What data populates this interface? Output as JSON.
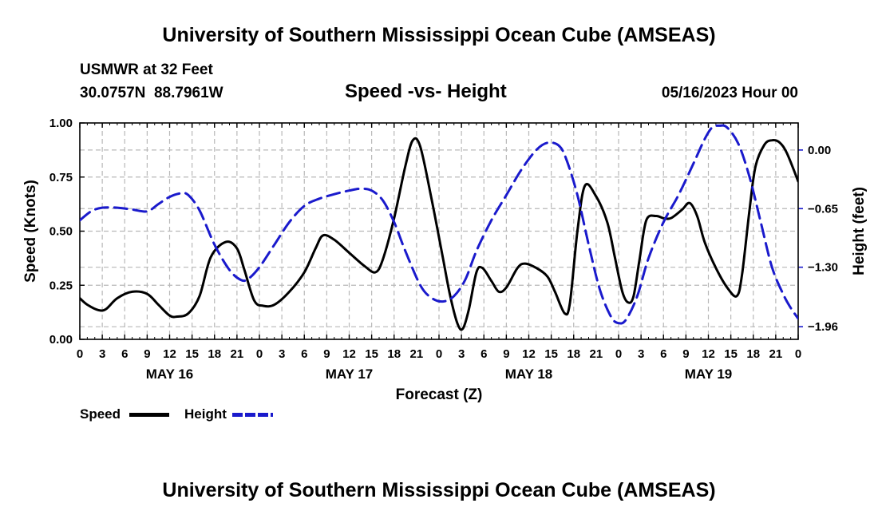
{
  "header": {
    "top_title": "University of Southern Mississippi Ocean Cube (AMSEAS)",
    "bottom_title": "University of Southern Mississippi Ocean Cube (AMSEAS)",
    "station": "USMWR at 32 Feet",
    "coords": "30.0757N  88.7961W",
    "date": "05/16/2023 Hour 00"
  },
  "chart_data": {
    "type": "line",
    "title": "Speed -vs- Height",
    "xlabel": "Forecast (Z)",
    "ylabel_left": "Speed (Knots)",
    "ylabel_right": "Height (feet)",
    "x_range_hours": [
      0,
      96
    ],
    "ylim_left": [
      0,
      1
    ],
    "ylim_right": [
      -2.1,
      0.3
    ],
    "x_tick_labels": [
      "0",
      "3",
      "6",
      "9",
      "12",
      "15",
      "18",
      "21",
      "0",
      "3",
      "6",
      "9",
      "12",
      "15",
      "18",
      "21",
      "0",
      "3",
      "6",
      "9",
      "12",
      "15",
      "18",
      "21",
      "0",
      "3",
      "6",
      "9",
      "12",
      "15",
      "18",
      "21",
      "0"
    ],
    "day_labels": [
      {
        "label": "MAY 16",
        "hour": 12
      },
      {
        "label": "MAY 17",
        "hour": 36
      },
      {
        "label": "MAY 18",
        "hour": 60
      },
      {
        "label": "MAY 19",
        "hour": 84
      }
    ],
    "left_ticks": [
      {
        "value": 0.0,
        "label": "0.00"
      },
      {
        "value": 0.25,
        "label": "0.25"
      },
      {
        "value": 0.5,
        "label": "0.50"
      },
      {
        "value": 0.75,
        "label": "0.75"
      },
      {
        "value": 1.0,
        "label": "1.00"
      }
    ],
    "right_ticks": [
      {
        "value": 0.0,
        "label": "0.00"
      },
      {
        "value": -0.65,
        "label": "−0.65"
      },
      {
        "value": -1.3,
        "label": "−1.30"
      },
      {
        "value": -1.96,
        "label": "−1.96"
      }
    ],
    "grid": true,
    "legend": [
      {
        "label": "Speed",
        "color": "#000000",
        "style": "solid"
      },
      {
        "label": "Height",
        "color": "#1a1acc",
        "style": "dashed"
      }
    ],
    "series": [
      {
        "name": "Speed",
        "axis": "left",
        "color": "#000000",
        "points": [
          [
            0,
            0.19
          ],
          [
            1,
            0.16
          ],
          [
            2.5,
            0.135
          ],
          [
            3.5,
            0.14
          ],
          [
            5,
            0.19
          ],
          [
            7,
            0.22
          ],
          [
            9,
            0.21
          ],
          [
            10.5,
            0.16
          ],
          [
            12,
            0.11
          ],
          [
            13,
            0.105
          ],
          [
            14.5,
            0.12
          ],
          [
            16,
            0.2
          ],
          [
            17.5,
            0.38
          ],
          [
            19.5,
            0.45
          ],
          [
            21,
            0.42
          ],
          [
            22,
            0.32
          ],
          [
            23.3,
            0.18
          ],
          [
            24.5,
            0.155
          ],
          [
            26,
            0.16
          ],
          [
            28,
            0.22
          ],
          [
            30,
            0.31
          ],
          [
            31.5,
            0.42
          ],
          [
            32.5,
            0.48
          ],
          [
            34,
            0.46
          ],
          [
            36,
            0.4
          ],
          [
            38,
            0.34
          ],
          [
            39.5,
            0.31
          ],
          [
            40.5,
            0.37
          ],
          [
            42,
            0.56
          ],
          [
            43.5,
            0.8
          ],
          [
            44.5,
            0.92
          ],
          [
            45.5,
            0.89
          ],
          [
            47,
            0.65
          ],
          [
            48.5,
            0.38
          ],
          [
            49.5,
            0.2
          ],
          [
            50.5,
            0.07
          ],
          [
            51.2,
            0.05
          ],
          [
            52,
            0.14
          ],
          [
            53,
            0.31
          ],
          [
            53.8,
            0.33
          ],
          [
            55,
            0.27
          ],
          [
            56,
            0.22
          ],
          [
            57,
            0.24
          ],
          [
            58.5,
            0.33
          ],
          [
            59.5,
            0.35
          ],
          [
            61,
            0.33
          ],
          [
            62.5,
            0.29
          ],
          [
            63.5,
            0.22
          ],
          [
            64.8,
            0.12
          ],
          [
            65.5,
            0.17
          ],
          [
            66.5,
            0.5
          ],
          [
            67.5,
            0.71
          ],
          [
            69,
            0.66
          ],
          [
            70.5,
            0.54
          ],
          [
            71.5,
            0.38
          ],
          [
            72.5,
            0.22
          ],
          [
            73.3,
            0.17
          ],
          [
            74,
            0.2
          ],
          [
            74.8,
            0.37
          ],
          [
            75.7,
            0.55
          ],
          [
            77,
            0.57
          ],
          [
            78,
            0.56
          ],
          [
            79,
            0.56
          ],
          [
            80.5,
            0.6
          ],
          [
            81.5,
            0.63
          ],
          [
            82.5,
            0.57
          ],
          [
            83.5,
            0.45
          ],
          [
            85,
            0.33
          ],
          [
            86.5,
            0.24
          ],
          [
            87.8,
            0.2
          ],
          [
            88.5,
            0.3
          ],
          [
            89.5,
            0.6
          ],
          [
            90.3,
            0.8
          ],
          [
            91.5,
            0.9
          ],
          [
            92.5,
            0.92
          ],
          [
            93.5,
            0.91
          ],
          [
            94.5,
            0.86
          ],
          [
            96,
            0.73
          ]
        ]
      },
      {
        "name": "Height",
        "axis": "right",
        "color": "#1a1acc",
        "points": [
          [
            0,
            -0.78
          ],
          [
            1.5,
            -0.68
          ],
          [
            3,
            -0.64
          ],
          [
            5,
            -0.64
          ],
          [
            7,
            -0.66
          ],
          [
            9,
            -0.68
          ],
          [
            10.5,
            -0.6
          ],
          [
            12,
            -0.52
          ],
          [
            13.5,
            -0.48
          ],
          [
            14.5,
            -0.5
          ],
          [
            16,
            -0.67
          ],
          [
            18,
            -1.05
          ],
          [
            20,
            -1.33
          ],
          [
            21.5,
            -1.44
          ],
          [
            22.5,
            -1.43
          ],
          [
            24,
            -1.3
          ],
          [
            26,
            -1.05
          ],
          [
            28,
            -0.8
          ],
          [
            30,
            -0.62
          ],
          [
            32,
            -0.54
          ],
          [
            34,
            -0.49
          ],
          [
            36,
            -0.45
          ],
          [
            37.5,
            -0.43
          ],
          [
            39,
            -0.45
          ],
          [
            40.5,
            -0.56
          ],
          [
            42,
            -0.8
          ],
          [
            43.5,
            -1.12
          ],
          [
            45.5,
            -1.5
          ],
          [
            47,
            -1.64
          ],
          [
            48.5,
            -1.68
          ],
          [
            50,
            -1.62
          ],
          [
            51.5,
            -1.44
          ],
          [
            53,
            -1.12
          ],
          [
            55,
            -0.78
          ],
          [
            57,
            -0.5
          ],
          [
            59,
            -0.22
          ],
          [
            61,
            0.0
          ],
          [
            62.5,
            0.08
          ],
          [
            64,
            0.05
          ],
          [
            65,
            -0.1
          ],
          [
            66.5,
            -0.5
          ],
          [
            68,
            -1.05
          ],
          [
            69.5,
            -1.55
          ],
          [
            71,
            -1.85
          ],
          [
            72,
            -1.92
          ],
          [
            73,
            -1.88
          ],
          [
            74.5,
            -1.62
          ],
          [
            76,
            -1.2
          ],
          [
            78,
            -0.8
          ],
          [
            80,
            -0.5
          ],
          [
            82,
            -0.15
          ],
          [
            83.5,
            0.12
          ],
          [
            84.5,
            0.25
          ],
          [
            85.5,
            0.27
          ],
          [
            86.5,
            0.25
          ],
          [
            88,
            0.07
          ],
          [
            89.5,
            -0.3
          ],
          [
            91,
            -0.8
          ],
          [
            92.5,
            -1.3
          ],
          [
            94,
            -1.6
          ],
          [
            95,
            -1.75
          ],
          [
            96,
            -1.87
          ]
        ]
      }
    ]
  }
}
